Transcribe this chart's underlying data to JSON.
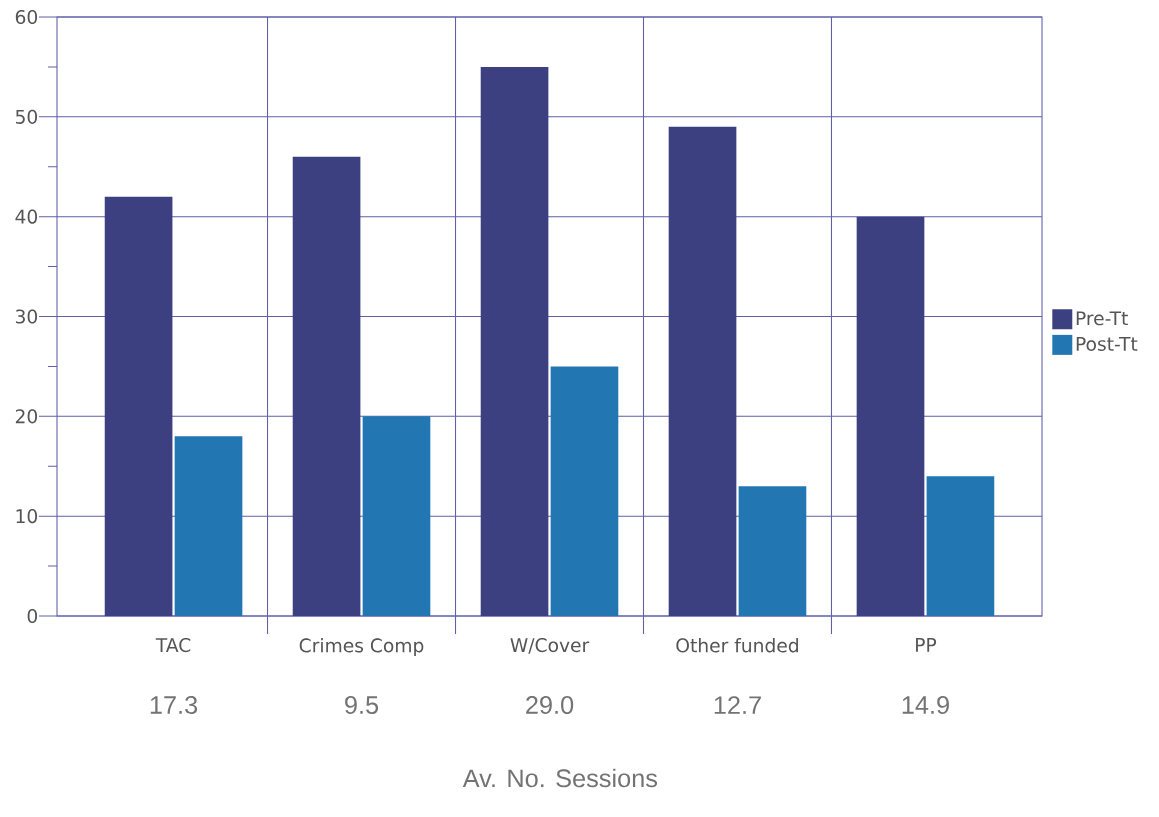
{
  "chart_data": {
    "type": "bar",
    "categories": [
      "TAC",
      "Crimes Comp",
      "W/Cover",
      "Other funded",
      "PP"
    ],
    "series": [
      {
        "name": "Pre-Tt",
        "color": "#3d4080",
        "values": [
          42,
          46,
          55,
          49,
          40
        ]
      },
      {
        "name": "Post-Tt",
        "color": "#2277b2",
        "values": [
          18,
          20,
          25,
          13,
          14
        ]
      }
    ],
    "ylim": [
      0,
      60
    ],
    "yticks": [
      0,
      10,
      20,
      30,
      40,
      50,
      60
    ],
    "grid": true,
    "legend": "right",
    "annotations": [
      "17.3",
      "9.5",
      "29.0",
      "12.7",
      "14.9",
      "Av. No. Sessions"
    ]
  }
}
